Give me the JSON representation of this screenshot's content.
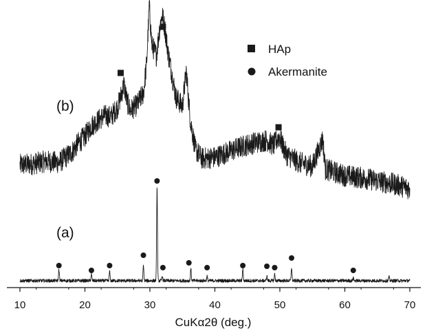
{
  "chart_data": {
    "type": "line",
    "title": "",
    "xlabel": "CuKα2θ (deg.)",
    "ylabel": "",
    "xlim": [
      10,
      70
    ],
    "x_ticks": [
      10,
      20,
      30,
      40,
      50,
      60,
      70
    ],
    "tick_labels": [
      "10",
      "20",
      "30",
      "40",
      "50",
      "60",
      "70"
    ],
    "y_ticks_shown": false,
    "legend": {
      "placement": "top-right",
      "entries": [
        {
          "label": "HAp",
          "marker": "square"
        },
        {
          "label": "Akermanite",
          "marker": "circle"
        }
      ]
    },
    "series": [
      {
        "label": "(b)",
        "color": "#1a1a1a",
        "x": [
          10.0,
          12.0,
          14.0,
          16.0,
          17.0,
          18.0,
          19.0,
          20.0,
          21.0,
          22.0,
          23.0,
          24.0,
          25.0,
          25.5,
          26.0,
          26.5,
          27.0,
          28.0,
          29.0,
          29.5,
          29.9,
          30.3,
          31.0,
          31.5,
          31.9,
          32.3,
          32.8,
          33.3,
          34.0,
          35.0,
          35.6,
          36.2,
          37.0,
          38.0,
          40.0,
          42.0,
          44.0,
          46.0,
          48.0,
          49.0,
          49.9,
          51.0,
          53.0,
          55.0,
          56.6,
          57.0,
          60.0,
          63.0,
          66.0,
          68.0,
          70.0
        ],
        "y": [
          0.0,
          0.01,
          0.03,
          0.02,
          0.06,
          0.1,
          0.17,
          0.22,
          0.3,
          0.34,
          0.38,
          0.37,
          0.44,
          0.52,
          0.62,
          0.48,
          0.42,
          0.46,
          0.55,
          0.78,
          1.22,
          0.92,
          0.84,
          1.05,
          1.15,
          1.05,
          0.86,
          0.72,
          0.52,
          0.45,
          0.72,
          0.35,
          0.12,
          0.05,
          0.06,
          0.1,
          0.14,
          0.17,
          0.19,
          0.15,
          0.22,
          0.08,
          0.02,
          -0.01,
          0.2,
          -0.03,
          -0.08,
          -0.1,
          -0.13,
          -0.15,
          -0.18
        ],
        "hap_peaks_x": [
          25.5,
          32.0,
          49.8
        ],
        "style": "noisy"
      },
      {
        "label": "(a)",
        "color": "#1a1a1a",
        "x": [
          16.0,
          21.0,
          23.8,
          29.0,
          31.1,
          31.9,
          36.3,
          38.8,
          44.3,
          48.0,
          49.2,
          51.8,
          61.3,
          66.8
        ],
        "y": [
          0.12,
          0.07,
          0.1,
          0.16,
          1.0,
          0.05,
          0.13,
          0.05,
          0.12,
          0.05,
          0.07,
          0.14,
          0.03,
          0.04
        ],
        "akermanite_peaks_x": [
          16.0,
          21.0,
          23.8,
          29.0,
          31.1,
          32.0,
          36.0,
          38.8,
          44.3,
          48.0,
          49.2,
          51.8,
          61.3
        ],
        "style": "sharp"
      }
    ]
  }
}
